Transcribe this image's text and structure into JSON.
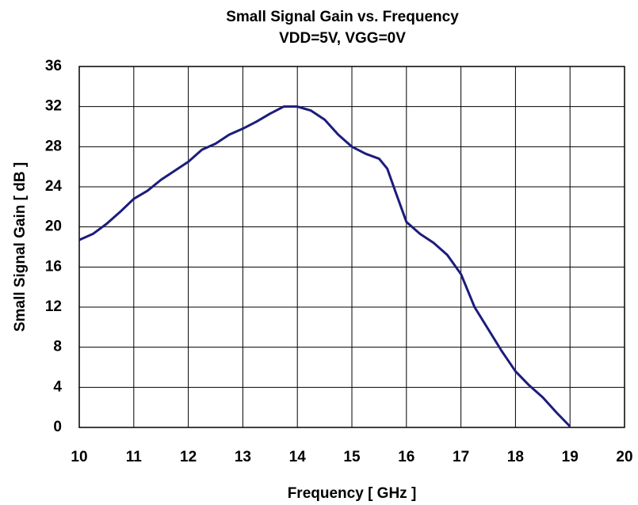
{
  "chart_data": {
    "type": "line",
    "title": "Small Signal Gain vs. Frequency",
    "subtitle": "VDD=5V, VGG=0V",
    "x_label": "Frequency [ GHz ]",
    "y_label": "Small Signal Gain [ dB ]",
    "x": [
      10,
      10.25,
      10.5,
      10.75,
      11,
      11.25,
      11.5,
      11.75,
      12,
      12.25,
      12.5,
      12.75,
      13,
      13.25,
      13.5,
      13.75,
      14,
      14.25,
      14.5,
      14.75,
      15,
      15.25,
      15.5,
      15.65,
      15.8,
      16,
      16.25,
      16.5,
      16.75,
      17,
      17.25,
      17.5,
      17.75,
      18,
      18.25,
      18.5,
      18.75,
      19
    ],
    "series": [
      {
        "name": "Small Signal Gain",
        "color": "#1c1c7c",
        "values": [
          18.7,
          19.3,
          20.3,
          21.5,
          22.8,
          23.6,
          24.7,
          25.6,
          26.5,
          27.7,
          28.3,
          29.2,
          29.8,
          30.5,
          31.3,
          32.0,
          32.0,
          31.6,
          30.7,
          29.2,
          28.0,
          27.3,
          26.8,
          25.8,
          23.5,
          20.5,
          19.3,
          18.4,
          17.2,
          15.3,
          12.0,
          9.8,
          7.6,
          5.6,
          4.2,
          3.0,
          1.5,
          0.1
        ]
      }
    ],
    "xlim": [
      10,
      20
    ],
    "xticks": [
      10,
      11,
      12,
      13,
      14,
      15,
      16,
      17,
      18,
      19,
      20
    ],
    "ylim": [
      0,
      36
    ],
    "yticks": [
      0,
      4,
      8,
      12,
      16,
      20,
      24,
      28,
      32,
      36
    ],
    "grid": true
  }
}
